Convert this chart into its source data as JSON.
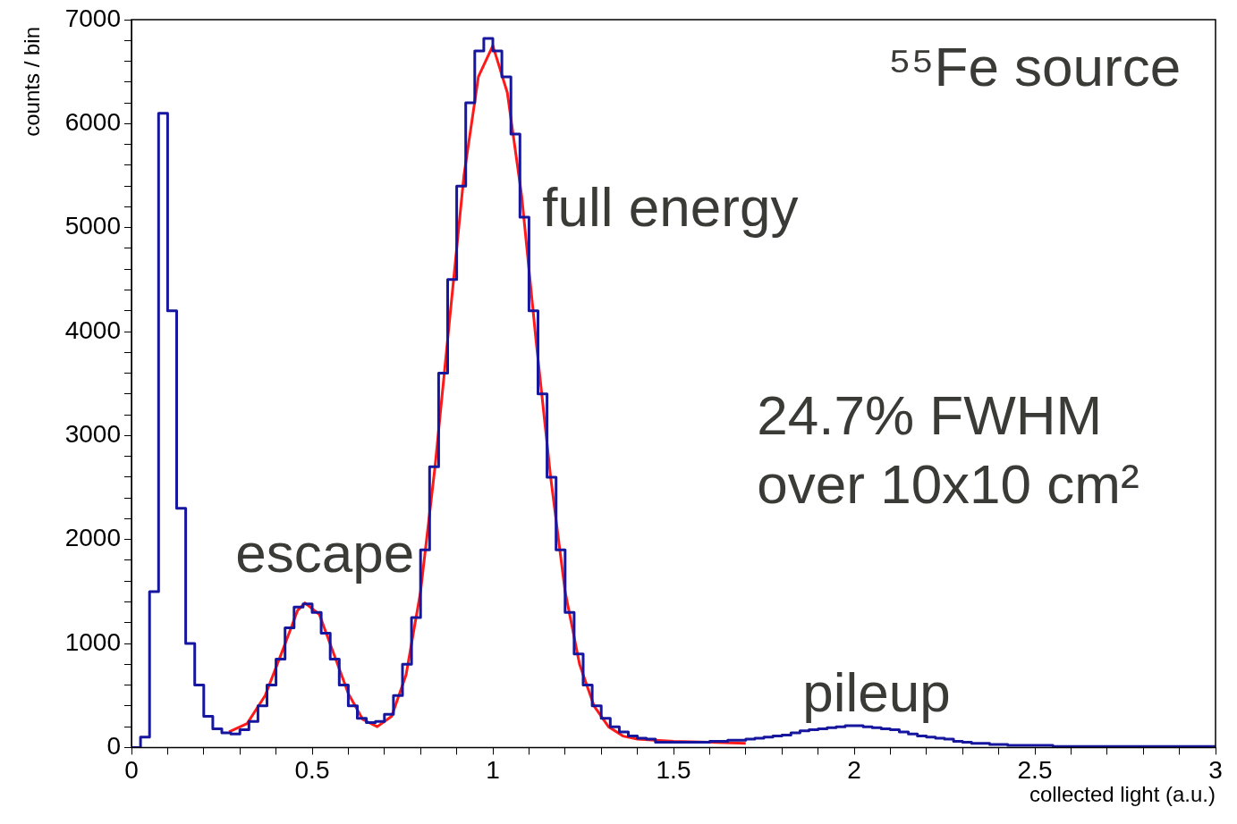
{
  "chart_data": {
    "type": "histogram",
    "xlabel": "collected light (a.u.)",
    "ylabel": "counts / bin",
    "bins": [
      0,
      0.025,
      0.05,
      0.075,
      0.1,
      0.125,
      0.15,
      0.175,
      0.2,
      0.225,
      0.25,
      0.275,
      0.3,
      0.325,
      0.35,
      0.375,
      0.4,
      0.425,
      0.45,
      0.475,
      0.5,
      0.525,
      0.55,
      0.575,
      0.6,
      0.625,
      0.65,
      0.675,
      0.7,
      0.725,
      0.75,
      0.775,
      0.8,
      0.825,
      0.85,
      0.875,
      0.9,
      0.925,
      0.95,
      0.975,
      1,
      1.025,
      1.05,
      1.075,
      1.1,
      1.125,
      1.15,
      1.175,
      1.2,
      1.225,
      1.25,
      1.275,
      1.3,
      1.325,
      1.35,
      1.375,
      1.4,
      1.425,
      1.45,
      1.475,
      1.5,
      1.525,
      1.55,
      1.575,
      1.6,
      1.625,
      1.65,
      1.675,
      1.7,
      1.725,
      1.75,
      1.775,
      1.8,
      1.825,
      1.85,
      1.875,
      1.9,
      1.925,
      1.95,
      1.975,
      2,
      2.025,
      2.05,
      2.075,
      2.1,
      2.125,
      2.15,
      2.175,
      2.2,
      2.225,
      2.25,
      2.275,
      2.3,
      2.325,
      2.35,
      2.375,
      2.4,
      2.425,
      2.45,
      2.475,
      2.5,
      2.525,
      2.55,
      2.575,
      2.6,
      2.625,
      2.65,
      2.675,
      2.7,
      2.725,
      2.75,
      2.775,
      2.8,
      2.825,
      2.85,
      2.875,
      2.9,
      2.925,
      2.95,
      2.975,
      3
    ],
    "series": [
      {
        "color": "#16169e",
        "values": [
          0,
          100,
          1500,
          6100,
          4200,
          2300,
          1000,
          600,
          300,
          180,
          140,
          130,
          170,
          250,
          400,
          600,
          850,
          1150,
          1350,
          1380,
          1300,
          1100,
          850,
          600,
          400,
          280,
          240,
          250,
          320,
          500,
          800,
          1250,
          1900,
          2700,
          3600,
          4500,
          5400,
          6200,
          6700,
          6820,
          6700,
          6450,
          5900,
          5100,
          4200,
          3400,
          2600,
          1900,
          1300,
          900,
          600,
          400,
          280,
          200,
          150,
          110,
          90,
          80,
          50,
          50,
          50,
          50,
          50,
          50,
          60,
          60,
          70,
          70,
          80,
          90,
          100,
          110,
          120,
          140,
          160,
          170,
          180,
          190,
          200,
          210,
          210,
          200,
          190,
          180,
          170,
          150,
          130,
          110,
          100,
          90,
          80,
          60,
          50,
          40,
          40,
          30,
          30,
          20,
          20,
          20,
          20,
          20,
          10,
          10,
          10,
          10,
          10,
          10,
          10,
          10,
          10,
          10,
          10,
          10,
          10,
          10,
          10,
          10,
          10,
          10
        ]
      },
      {
        "type": "line",
        "color": "#ff1a1a",
        "x": [
          0.27,
          0.32,
          0.37,
          0.42,
          0.46,
          0.48,
          0.52,
          0.56,
          0.6,
          0.64,
          0.68,
          0.72,
          0.76,
          0.8,
          0.84,
          0.88,
          0.92,
          0.96,
          1,
          1.04,
          1.08,
          1.12,
          1.16,
          1.2,
          1.24,
          1.28,
          1.32,
          1.36,
          1.4,
          1.5,
          1.6,
          1.7
        ],
        "values": [
          150,
          230,
          500,
          950,
          1320,
          1390,
          1280,
          900,
          520,
          270,
          200,
          300,
          700,
          1500,
          2700,
          4100,
          5500,
          6450,
          6750,
          6300,
          5300,
          3900,
          2600,
          1500,
          800,
          400,
          200,
          110,
          80,
          60,
          50,
          40
        ]
      }
    ],
    "xlim": [
      0,
      3
    ],
    "ylim": [
      0,
      7000
    ],
    "xticks": [
      0,
      {
        "value": 0.1,
        "label": null
      },
      {
        "value": 0.2,
        "label": null
      },
      {
        "value": 0.3,
        "label": null
      },
      {
        "value": 0.4,
        "label": null
      },
      0.5,
      {
        "value": 0.6,
        "label": null
      },
      {
        "value": 0.7,
        "label": null
      },
      {
        "value": 0.8,
        "label": null
      },
      {
        "value": 0.9,
        "label": null
      },
      1,
      {
        "value": 1.1,
        "label": null
      },
      {
        "value": 1.2,
        "label": null
      },
      {
        "value": 1.3,
        "label": null
      },
      {
        "value": 1.4,
        "label": null
      },
      1.5,
      {
        "value": 1.6,
        "label": null
      },
      {
        "value": 1.7,
        "label": null
      },
      {
        "value": 1.8,
        "label": null
      },
      {
        "value": 1.9,
        "label": null
      },
      2,
      {
        "value": 2.1,
        "label": null
      },
      {
        "value": 2.2,
        "label": null
      },
      {
        "value": 2.3,
        "label": null
      },
      {
        "value": 2.4,
        "label": null
      },
      2.5,
      {
        "value": 2.6,
        "label": null
      },
      {
        "value": 2.7,
        "label": null
      },
      {
        "value": 2.8,
        "label": null
      },
      {
        "value": 2.9,
        "label": null
      },
      3
    ],
    "yticks": [
      0,
      {
        "value": 200,
        "label": null
      },
      {
        "value": 400,
        "label": null
      },
      {
        "value": 600,
        "label": null
      },
      {
        "value": 800,
        "label": null
      },
      1000,
      {
        "value": 1200,
        "label": null
      },
      {
        "value": 1400,
        "label": null
      },
      {
        "value": 1600,
        "label": null
      },
      {
        "value": 1800,
        "label": null
      },
      2000,
      {
        "value": 2200,
        "label": null
      },
      {
        "value": 2400,
        "label": null
      },
      {
        "value": 2600,
        "label": null
      },
      {
        "value": 2800,
        "label": null
      },
      3000,
      {
        "value": 3200,
        "label": null
      },
      {
        "value": 3400,
        "label": null
      },
      {
        "value": 3600,
        "label": null
      },
      {
        "value": 3800,
        "label": null
      },
      4000,
      {
        "value": 4200,
        "label": null
      },
      {
        "value": 4400,
        "label": null
      },
      {
        "value": 4600,
        "label": null
      },
      {
        "value": 4800,
        "label": null
      },
      5000,
      {
        "value": 5200,
        "label": null
      },
      {
        "value": 5400,
        "label": null
      },
      {
        "value": 5600,
        "label": null
      },
      {
        "value": 5800,
        "label": null
      },
      6000,
      {
        "value": 6200,
        "label": null
      },
      {
        "value": 6400,
        "label": null
      },
      {
        "value": 6600,
        "label": null
      },
      {
        "value": 6800,
        "label": null
      },
      7000
    ],
    "grid": false,
    "legend": false,
    "annotations": [
      "escape",
      "full energy",
      "pileup",
      "⁵⁵Fe source",
      "24.7% FWHM",
      "over 10x10 cm²"
    ]
  }
}
